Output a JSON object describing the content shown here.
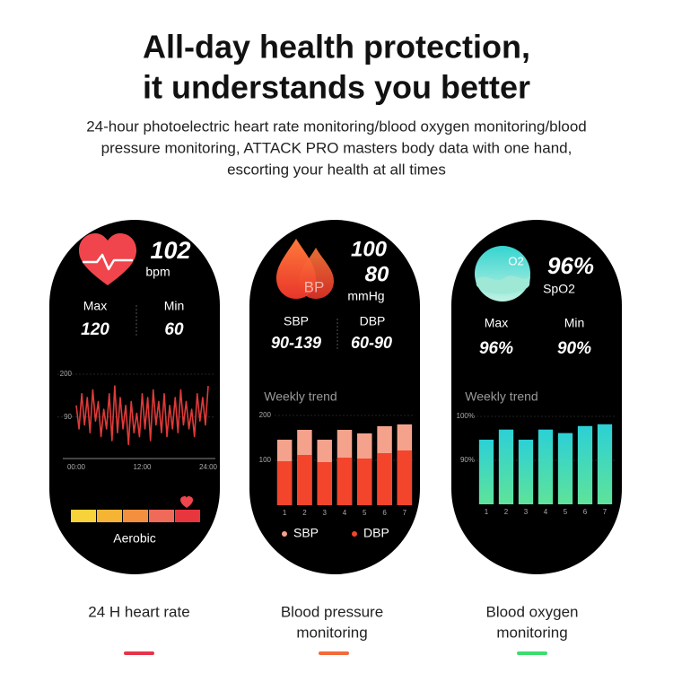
{
  "header": {
    "title": [
      "All-day health protection,",
      "it understands you better"
    ],
    "subtitle": [
      "24-hour photoelectric heart rate monitoring/blood oxygen monitoring/blood",
      "pressure monitoring, ATTACK PRO masters body data with one hand,",
      "escorting your health at all times"
    ]
  },
  "screens": [
    {
      "value": "102",
      "unit": "bpm",
      "max_label": "Max",
      "max": "120",
      "min_label": "Min",
      "min": "60",
      "zone": "Aerobic"
    },
    {
      "icon_text": "BP",
      "systolic": "100",
      "diastolic": "80",
      "unit": "mmHg",
      "sbp_label": "SBP",
      "sbp_range": "90-139",
      "dbp_label": "DBP",
      "dbp_range": "60-90"
    },
    {
      "icon_text": "O2",
      "value": "96%",
      "unit": "SpO2",
      "max_label": "Max",
      "max": "96%",
      "min_label": "Min",
      "min": "90%"
    }
  ],
  "chart_data": [
    {
      "type": "line",
      "color": "#e03a3a",
      "x": [
        0,
        0.5,
        1,
        1.5,
        2,
        2.5,
        3,
        3.5,
        4,
        4.5,
        5,
        5.5,
        6,
        6.5,
        7,
        7.5,
        8,
        8.5,
        9,
        9.5,
        10,
        10.5,
        11,
        11.5,
        12,
        12.5,
        13,
        13.5,
        14,
        14.5,
        15,
        15.5,
        16,
        16.5,
        17,
        17.5,
        18,
        18.5,
        19,
        19.5,
        20,
        20.5,
        21,
        21.5,
        22,
        22.5,
        23,
        23.5,
        24
      ],
      "values": [
        120,
        60,
        150,
        70,
        140,
        50,
        160,
        80,
        130,
        40,
        110,
        60,
        150,
        30,
        170,
        50,
        140,
        60,
        120,
        20,
        130,
        50,
        100,
        40,
        150,
        60,
        140,
        30,
        160,
        70,
        130,
        50,
        150,
        40,
        120,
        60,
        140,
        50,
        160,
        70,
        130,
        60,
        110,
        40,
        150,
        80,
        140,
        70,
        170
      ],
      "xlim": [
        0,
        24
      ],
      "xticks": [
        {
          "value": 0,
          "label": "00:00"
        },
        {
          "value": 12,
          "label": "12:00"
        },
        {
          "value": 24,
          "label": "24:00"
        }
      ],
      "ylim": [
        0,
        200
      ],
      "yticks": [
        90,
        200
      ],
      "grid": true
    },
    {
      "type": "bar",
      "title": "Weekly trend",
      "categories": [
        "1",
        "2",
        "3",
        "4",
        "5",
        "6",
        "7"
      ],
      "series": [
        {
          "name": "SBP",
          "color": "#f5a28c",
          "values": [
            146,
            168,
            146,
            168,
            160,
            176,
            180
          ]
        },
        {
          "name": "DBP",
          "color": "#f2452c",
          "values": [
            98,
            112,
            96,
            106,
            104,
            116,
            122
          ]
        }
      ],
      "ylim": [
        0,
        200
      ],
      "yticks": [
        100,
        200
      ],
      "grid": true,
      "legend": "bottom"
    },
    {
      "type": "bar",
      "title": "Weekly trend",
      "categories": [
        "1",
        "2",
        "3",
        "4",
        "5",
        "6",
        "7"
      ],
      "series": [
        {
          "name": "SpO2",
          "color": [
            "#2cd0d6",
            "#5fe39a"
          ],
          "values": [
            94.7,
            97,
            94.7,
            97,
            96.2,
            97.8,
            98.2
          ]
        }
      ],
      "ylim": [
        80,
        100
      ],
      "yticks": [
        {
          "value": 90,
          "label": "90%"
        },
        {
          "value": 100,
          "label": "100%"
        }
      ],
      "grid": true
    }
  ],
  "captions": [
    {
      "lines": [
        "24 H heart rate"
      ],
      "color": "#e8334a"
    },
    {
      "lines": [
        "Blood pressure",
        "monitoring"
      ],
      "color": "#f26a3a"
    },
    {
      "lines": [
        "Blood oxygen",
        "monitoring"
      ],
      "color": "#3ddc6e"
    }
  ]
}
